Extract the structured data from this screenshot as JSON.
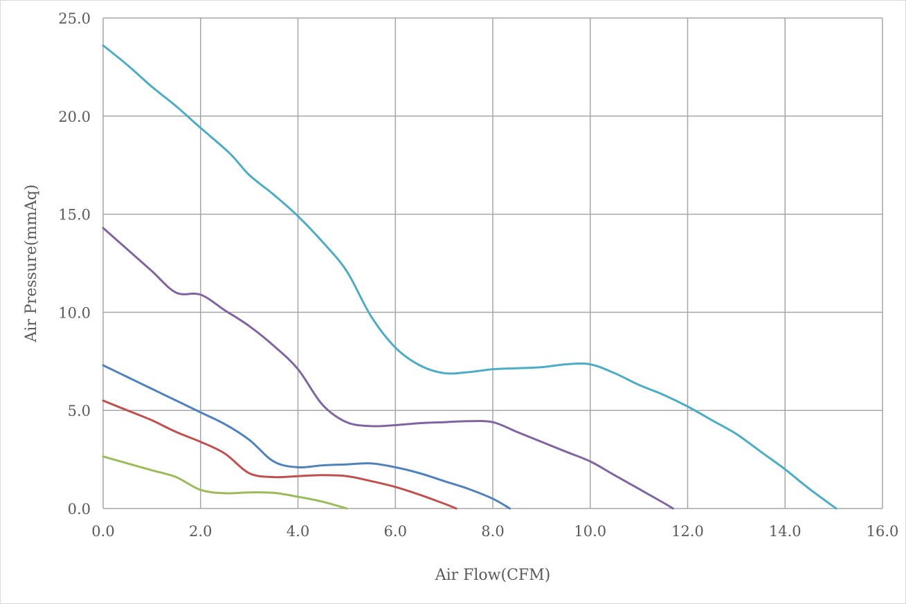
{
  "chart_data": {
    "type": "line",
    "title": "",
    "xlabel": "Air Flow(CFM)",
    "ylabel": "Air Pressure(mmAq)",
    "xlim": [
      0,
      16
    ],
    "ylim": [
      0,
      25
    ],
    "grid": true,
    "legend": "none",
    "x_ticks": [
      "0.0",
      "2.0",
      "4.0",
      "6.0",
      "8.0",
      "10.0",
      "12.0",
      "14.0",
      "16.0"
    ],
    "y_ticks": [
      "0.0",
      "5.0",
      "10.0",
      "15.0",
      "20.0",
      "25.0"
    ],
    "series": [
      {
        "color": "#4bacc6",
        "points": [
          [
            0.0,
            23.6
          ],
          [
            0.5,
            22.6
          ],
          [
            1.0,
            21.5
          ],
          [
            1.5,
            20.5
          ],
          [
            2.0,
            19.4
          ],
          [
            2.6,
            18.1
          ],
          [
            3.0,
            17.0
          ],
          [
            3.5,
            16.0
          ],
          [
            4.0,
            14.9
          ],
          [
            4.5,
            13.6
          ],
          [
            5.0,
            12.1
          ],
          [
            5.5,
            9.8
          ],
          [
            6.0,
            8.2
          ],
          [
            6.5,
            7.3
          ],
          [
            7.0,
            6.9
          ],
          [
            7.5,
            6.95
          ],
          [
            8.0,
            7.1
          ],
          [
            8.5,
            7.15
          ],
          [
            9.0,
            7.2
          ],
          [
            9.5,
            7.35
          ],
          [
            10.0,
            7.35
          ],
          [
            10.5,
            6.9
          ],
          [
            11.0,
            6.3
          ],
          [
            11.5,
            5.8
          ],
          [
            12.0,
            5.2
          ],
          [
            12.5,
            4.5
          ],
          [
            13.0,
            3.8
          ],
          [
            13.5,
            2.9
          ],
          [
            14.0,
            2.0
          ],
          [
            14.5,
            1.0
          ],
          [
            15.05,
            0.0
          ]
        ]
      },
      {
        "color": "#8064a2",
        "points": [
          [
            0.0,
            14.3
          ],
          [
            0.5,
            13.2
          ],
          [
            1.0,
            12.1
          ],
          [
            1.5,
            11.0
          ],
          [
            2.0,
            10.9
          ],
          [
            2.5,
            10.1
          ],
          [
            3.0,
            9.3
          ],
          [
            3.5,
            8.3
          ],
          [
            4.0,
            7.1
          ],
          [
            4.5,
            5.3
          ],
          [
            5.0,
            4.4
          ],
          [
            5.5,
            4.2
          ],
          [
            6.0,
            4.25
          ],
          [
            6.5,
            4.35
          ],
          [
            7.0,
            4.4
          ],
          [
            7.5,
            4.45
          ],
          [
            8.0,
            4.4
          ],
          [
            8.5,
            3.9
          ],
          [
            9.0,
            3.4
          ],
          [
            9.5,
            2.9
          ],
          [
            10.0,
            2.4
          ],
          [
            10.5,
            1.7
          ],
          [
            11.0,
            1.0
          ],
          [
            11.5,
            0.3
          ],
          [
            11.7,
            0.0
          ]
        ]
      },
      {
        "color": "#4f81bd",
        "points": [
          [
            0.0,
            7.3
          ],
          [
            0.5,
            6.7
          ],
          [
            1.0,
            6.1
          ],
          [
            1.5,
            5.5
          ],
          [
            2.0,
            4.9
          ],
          [
            2.5,
            4.3
          ],
          [
            3.0,
            3.5
          ],
          [
            3.5,
            2.4
          ],
          [
            4.0,
            2.1
          ],
          [
            4.5,
            2.2
          ],
          [
            5.0,
            2.25
          ],
          [
            5.5,
            2.3
          ],
          [
            6.0,
            2.1
          ],
          [
            6.5,
            1.8
          ],
          [
            7.0,
            1.4
          ],
          [
            7.5,
            1.0
          ],
          [
            8.0,
            0.5
          ],
          [
            8.35,
            0.0
          ]
        ]
      },
      {
        "color": "#c0504d",
        "points": [
          [
            0.0,
            5.5
          ],
          [
            0.5,
            5.0
          ],
          [
            1.0,
            4.5
          ],
          [
            1.5,
            3.9
          ],
          [
            2.0,
            3.4
          ],
          [
            2.5,
            2.8
          ],
          [
            3.0,
            1.8
          ],
          [
            3.5,
            1.6
          ],
          [
            4.0,
            1.65
          ],
          [
            4.5,
            1.7
          ],
          [
            5.0,
            1.65
          ],
          [
            5.5,
            1.4
          ],
          [
            6.0,
            1.1
          ],
          [
            6.5,
            0.7
          ],
          [
            7.0,
            0.25
          ],
          [
            7.25,
            0.0
          ]
        ]
      },
      {
        "color": "#9bbb59",
        "points": [
          [
            0.0,
            2.65
          ],
          [
            0.5,
            2.3
          ],
          [
            1.0,
            1.95
          ],
          [
            1.5,
            1.6
          ],
          [
            2.0,
            0.95
          ],
          [
            2.5,
            0.78
          ],
          [
            3.0,
            0.82
          ],
          [
            3.5,
            0.8
          ],
          [
            4.0,
            0.6
          ],
          [
            4.5,
            0.35
          ],
          [
            5.0,
            0.0
          ]
        ]
      }
    ]
  },
  "colors": {
    "grid": "#a6a6a6",
    "axis": "#a6a6a6",
    "text": "#595959"
  }
}
